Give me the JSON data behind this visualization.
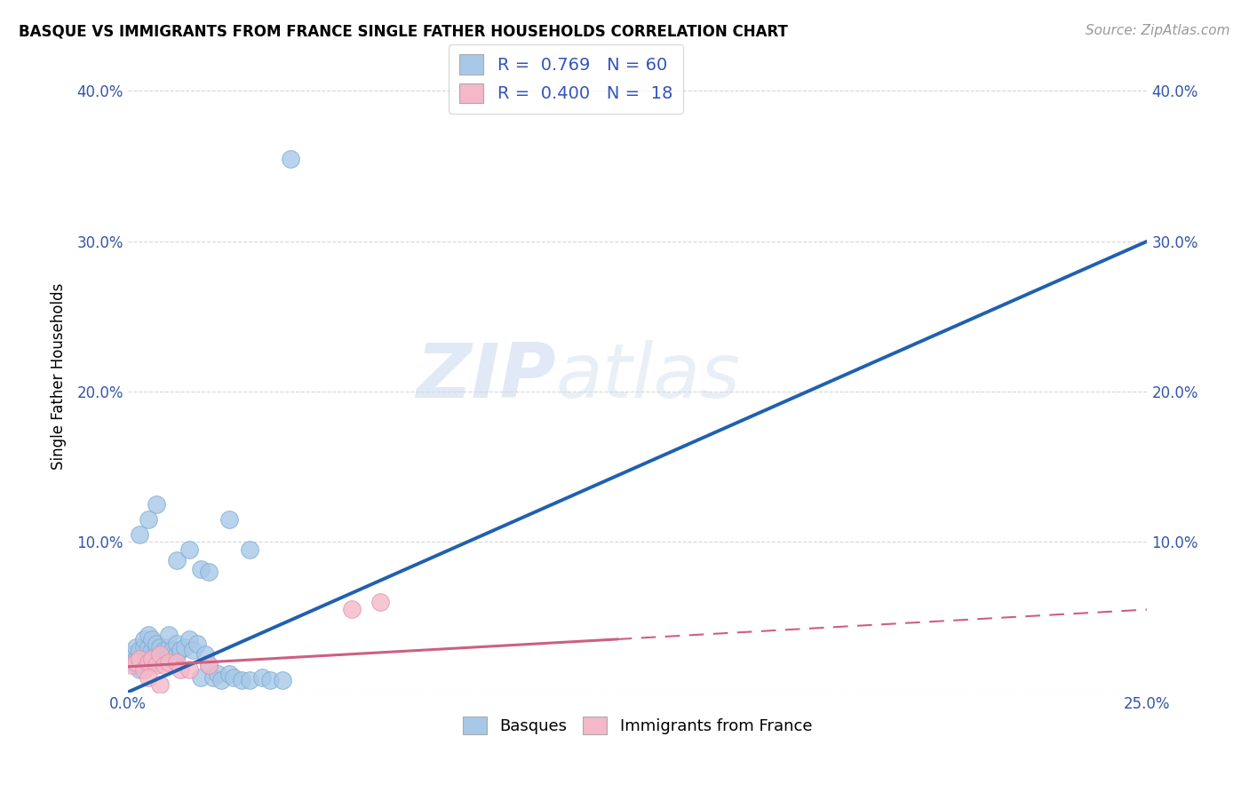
{
  "title": "BASQUE VS IMMIGRANTS FROM FRANCE SINGLE FATHER HOUSEHOLDS CORRELATION CHART",
  "source": "Source: ZipAtlas.com",
  "ylabel": "Single Father Households",
  "xlabel": "",
  "xlim": [
    0.0,
    0.25
  ],
  "ylim": [
    0.0,
    0.42
  ],
  "xticks": [
    0.0,
    0.05,
    0.1,
    0.15,
    0.2,
    0.25
  ],
  "yticks": [
    0.0,
    0.1,
    0.2,
    0.3,
    0.4
  ],
  "xticklabels": [
    "0.0%",
    "",
    "",
    "",
    "",
    "25.0%"
  ],
  "yticklabels": [
    "",
    "10.0%",
    "20.0%",
    "30.0%",
    "40.0%"
  ],
  "blue_color": "#A8C8E8",
  "blue_edge": "#7AAAD0",
  "pink_color": "#F4B8C8",
  "pink_edge": "#E090AA",
  "line_blue": "#2060B0",
  "line_pink": "#CC6080",
  "legend_R1": "0.769",
  "legend_N1": "60",
  "legend_R2": "0.400",
  "legend_N2": "18",
  "blue_line_x0": 0.0,
  "blue_line_y0": 0.0,
  "blue_line_x1": 0.25,
  "blue_line_y1": 0.3,
  "pink_line_x0": 0.0,
  "pink_line_y0": 0.017,
  "pink_line_x1": 0.25,
  "pink_line_y1": 0.055,
  "blue_scatter_x": [
    0.001,
    0.001,
    0.002,
    0.002,
    0.002,
    0.003,
    0.003,
    0.003,
    0.004,
    0.004,
    0.004,
    0.004,
    0.005,
    0.005,
    0.005,
    0.005,
    0.006,
    0.006,
    0.006,
    0.007,
    0.007,
    0.007,
    0.008,
    0.008,
    0.009,
    0.009,
    0.01,
    0.01,
    0.01,
    0.011,
    0.012,
    0.012,
    0.013,
    0.014,
    0.015,
    0.016,
    0.017,
    0.018,
    0.019,
    0.02,
    0.021,
    0.022,
    0.023,
    0.025,
    0.026,
    0.028,
    0.03,
    0.033,
    0.035,
    0.038,
    0.003,
    0.005,
    0.007,
    0.012,
    0.015,
    0.018,
    0.02,
    0.025,
    0.03,
    0.04
  ],
  "blue_scatter_y": [
    0.02,
    0.025,
    0.018,
    0.022,
    0.03,
    0.015,
    0.02,
    0.028,
    0.018,
    0.025,
    0.03,
    0.035,
    0.02,
    0.025,
    0.03,
    0.038,
    0.022,
    0.028,
    0.035,
    0.02,
    0.028,
    0.032,
    0.025,
    0.03,
    0.022,
    0.028,
    0.025,
    0.03,
    0.038,
    0.028,
    0.025,
    0.032,
    0.028,
    0.03,
    0.035,
    0.028,
    0.032,
    0.01,
    0.025,
    0.018,
    0.01,
    0.012,
    0.008,
    0.012,
    0.01,
    0.008,
    0.008,
    0.01,
    0.008,
    0.008,
    0.105,
    0.115,
    0.125,
    0.088,
    0.095,
    0.082,
    0.08,
    0.115,
    0.095,
    0.355
  ],
  "pink_scatter_x": [
    0.001,
    0.002,
    0.003,
    0.004,
    0.005,
    0.006,
    0.007,
    0.008,
    0.009,
    0.01,
    0.012,
    0.013,
    0.015,
    0.02,
    0.055,
    0.062,
    0.005,
    0.008
  ],
  "pink_scatter_y": [
    0.018,
    0.02,
    0.022,
    0.015,
    0.02,
    0.022,
    0.018,
    0.025,
    0.018,
    0.02,
    0.02,
    0.015,
    0.015,
    0.018,
    0.055,
    0.06,
    0.01,
    0.005
  ],
  "watermark_zip": "ZIP",
  "watermark_atlas": "atlas",
  "background_color": "#FFFFFF",
  "grid_color": "#CCCCCC"
}
